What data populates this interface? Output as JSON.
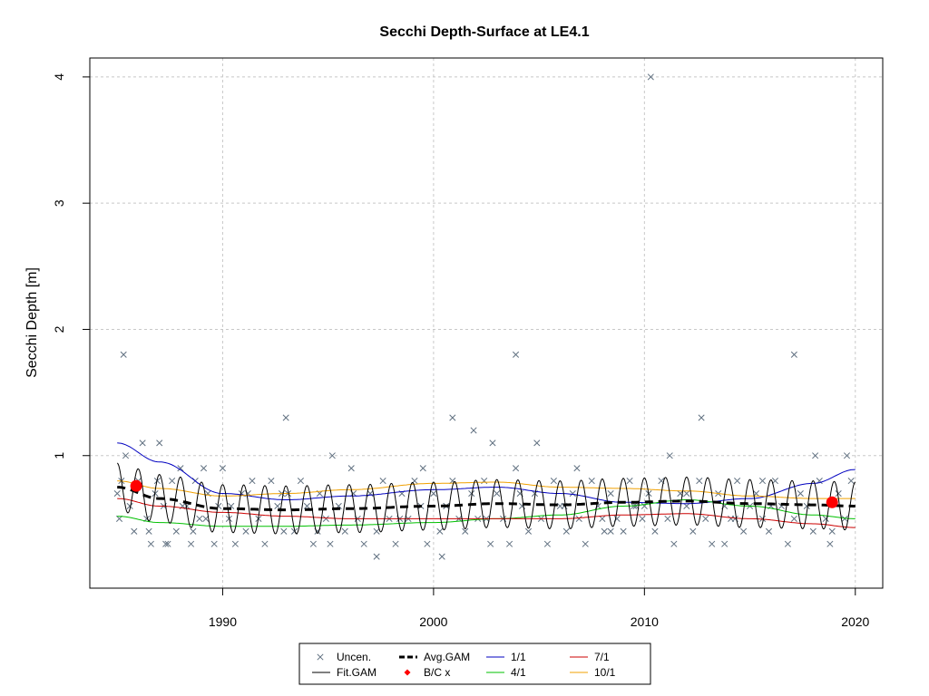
{
  "chart_data": {
    "type": "scatter",
    "title": "Secchi Depth-Surface at LE4.1",
    "xlabel": "",
    "ylabel": "Secchi Depth [m]",
    "xlim": [
      1983.7,
      2021.3
    ],
    "ylim": [
      -0.05,
      4.15
    ],
    "x_ticks": [
      1990,
      2000,
      2010,
      2020
    ],
    "y_ticks": [
      1,
      2,
      3,
      4
    ],
    "grid": true,
    "legend_position": "bottom-center",
    "legend": {
      "entries": [
        {
          "label": "Uncen.",
          "key": "uncen",
          "color": "#607080",
          "kind": "x"
        },
        {
          "label": "Fit.GAM",
          "key": "fit",
          "color": "#000000",
          "kind": "line"
        },
        {
          "label": "Avg.GAM",
          "key": "avg",
          "color": "#000000",
          "kind": "dash"
        },
        {
          "label": "B/C x",
          "key": "bc",
          "color": "#ff0000",
          "kind": "dot"
        },
        {
          "label": "1/1",
          "key": "d1",
          "color": "#0000c0",
          "kind": "line"
        },
        {
          "label": "4/1",
          "key": "d4",
          "color": "#00c000",
          "kind": "line"
        },
        {
          "label": "7/1",
          "key": "d7",
          "color": "#cc0000",
          "kind": "line"
        },
        {
          "label": "10/1",
          "key": "d10",
          "color": "#f0a000",
          "kind": "line"
        }
      ]
    },
    "observations": {
      "x": [
        1985.0,
        1985.2,
        1985.4,
        1985.6,
        1985.8,
        1986.0,
        1986.2,
        1986.4,
        1986.6,
        1986.8,
        1987.0,
        1987.2,
        1987.4,
        1987.6,
        1987.8,
        1988.0,
        1988.3,
        1988.5,
        1988.7,
        1988.9,
        1989.1,
        1989.3,
        1989.6,
        1989.8,
        1990.0,
        1990.3,
        1990.6,
        1990.9,
        1991.1,
        1991.4,
        1991.7,
        1992.0,
        1992.3,
        1992.6,
        1992.9,
        1993.1,
        1993.4,
        1993.7,
        1994.0,
        1994.3,
        1994.6,
        1994.9,
        1995.2,
        1995.5,
        1995.8,
        1996.1,
        1996.4,
        1996.7,
        1997.0,
        1997.3,
        1997.6,
        1997.9,
        1998.2,
        1998.5,
        1998.8,
        1999.1,
        1999.4,
        1999.7,
        2000.0,
        2000.3,
        2000.6,
        2000.9,
        2001.2,
        2001.5,
        2001.8,
        2002.1,
        2002.4,
        2002.7,
        2003.0,
        2003.3,
        2003.6,
        2003.9,
        2004.2,
        2004.5,
        2004.8,
        2005.1,
        2005.4,
        2005.7,
        2006.0,
        2006.3,
        2006.6,
        2006.9,
        2007.2,
        2007.5,
        2007.8,
        2008.1,
        2008.4,
        2008.7,
        2009.0,
        2009.3,
        2009.6,
        2009.9,
        2010.2,
        2010.5,
        2010.8,
        2011.1,
        2011.4,
        2011.7,
        2012.0,
        2012.3,
        2012.6,
        2012.9,
        2013.2,
        2013.5,
        2013.8,
        2014.1,
        2014.4,
        2014.7,
        2015.0,
        2015.3,
        2015.6,
        2015.9,
        2016.2,
        2016.5,
        2016.8,
        2017.1,
        2017.4,
        2017.7,
        2018.0,
        2018.3,
        2018.6,
        2018.9,
        2019.2,
        2019.5,
        2019.8,
        1985.3,
        1986.5,
        1987.3,
        1988.1,
        1989.2,
        1991.2,
        1993.0,
        1995.1,
        1997.3,
        1999.5,
        2000.4,
        2000.9,
        2001.9,
        2002.8,
        2003.9,
        2004.9,
        2006.8,
        2008.4,
        2009.5,
        2010.3,
        2011.2,
        2012.7,
        2013.8,
        2015.6,
        2017.1,
        2018.8,
        1985.1,
        1986.9,
        1988.6,
        1990.4,
        1992.8,
        1994.5,
        1996.2,
        1998.4,
        2000.6,
        2002.5,
        2004.1,
        2006.2,
        2008.0,
        2010.0,
        2012.0,
        2014.3,
        2016.0,
        2018.1,
        2019.6
      ],
      "y": [
        0.7,
        0.8,
        1.0,
        0.6,
        0.4,
        0.8,
        1.1,
        0.5,
        0.3,
        0.7,
        1.1,
        0.6,
        0.3,
        0.8,
        0.4,
        0.9,
        0.6,
        0.3,
        0.8,
        0.5,
        0.9,
        0.7,
        0.3,
        0.6,
        0.9,
        0.5,
        0.3,
        0.7,
        0.4,
        0.8,
        0.5,
        0.3,
        0.8,
        0.6,
        0.4,
        0.7,
        0.4,
        0.8,
        0.6,
        0.3,
        0.7,
        0.5,
        1.0,
        0.6,
        0.4,
        0.9,
        0.5,
        0.3,
        0.7,
        0.4,
        0.8,
        0.5,
        0.3,
        0.7,
        0.5,
        0.8,
        0.6,
        0.3,
        0.7,
        0.4,
        0.6,
        0.8,
        0.5,
        0.4,
        0.7,
        0.5,
        0.8,
        0.3,
        0.7,
        0.5,
        0.3,
        0.9,
        0.6,
        0.4,
        0.7,
        0.5,
        0.3,
        0.8,
        0.6,
        0.4,
        0.7,
        0.5,
        0.3,
        0.8,
        0.6,
        0.4,
        0.7,
        0.5,
        0.4,
        0.8,
        0.6,
        0.5,
        0.7,
        0.4,
        0.8,
        0.5,
        0.3,
        0.7,
        0.6,
        0.4,
        0.8,
        0.5,
        0.3,
        0.7,
        0.6,
        0.5,
        0.8,
        0.4,
        0.6,
        0.7,
        0.5,
        0.4,
        0.8,
        0.6,
        0.3,
        0.5,
        0.7,
        0.6,
        0.4,
        0.8,
        0.5,
        0.4,
        0.7,
        0.5,
        0.8,
        1.8,
        0.4,
        0.3,
        0.6,
        0.5,
        0.7,
        1.3,
        0.3,
        0.2,
        0.9,
        0.2,
        1.3,
        1.2,
        1.1,
        1.8,
        1.1,
        0.9,
        0.4,
        0.6,
        4.0,
        1.0,
        1.3,
        0.3,
        0.8,
        1.8,
        0.3,
        0.5,
        0.8,
        0.4,
        0.6,
        0.7,
        0.4,
        0.7,
        0.5,
        0.6,
        0.5,
        0.7,
        0.6,
        0.5,
        0.6,
        0.7,
        0.5,
        0.6,
        1.0,
        1.0
      ],
      "color": "#607080"
    },
    "bc_points": {
      "x": [
        1985.9,
        2018.9
      ],
      "y": [
        0.76,
        0.63
      ],
      "color": "#ff0000"
    },
    "fit_gam": {
      "seasonal_amplitude": 0.19,
      "period_years": 1,
      "x_start": 1985.0,
      "x_end": 2020.0,
      "color": "#000000"
    },
    "avg_gam": {
      "x": [
        1985,
        1987,
        1990,
        1993,
        1996,
        2000,
        2003,
        2006,
        2009,
        2012,
        2015,
        2018,
        2020
      ],
      "y": [
        0.75,
        0.66,
        0.58,
        0.57,
        0.58,
        0.6,
        0.62,
        0.61,
        0.63,
        0.64,
        0.62,
        0.61,
        0.6
      ],
      "color": "#000000"
    },
    "series": [
      {
        "name": "1/1",
        "color": "#0000c0",
        "x": [
          1985,
          1987,
          1990,
          1993,
          1996,
          2000,
          2003,
          2006,
          2009,
          2012,
          2015,
          2018,
          2020
        ],
        "y": [
          1.1,
          0.95,
          0.7,
          0.65,
          0.68,
          0.73,
          0.75,
          0.7,
          0.63,
          0.62,
          0.66,
          0.78,
          0.89
        ]
      },
      {
        "name": "4/1",
        "color": "#00c000",
        "x": [
          1985,
          1987,
          1990,
          1993,
          1996,
          2000,
          2003,
          2006,
          2009,
          2012,
          2015,
          2018,
          2020
        ],
        "y": [
          0.52,
          0.47,
          0.44,
          0.44,
          0.45,
          0.47,
          0.5,
          0.53,
          0.6,
          0.65,
          0.6,
          0.53,
          0.5
        ]
      },
      {
        "name": "7/1",
        "color": "#cc0000",
        "x": [
          1985,
          1987,
          1990,
          1993,
          1996,
          2000,
          2003,
          2006,
          2009,
          2012,
          2015,
          2018,
          2020
        ],
        "y": [
          0.66,
          0.6,
          0.55,
          0.52,
          0.5,
          0.5,
          0.5,
          0.5,
          0.53,
          0.54,
          0.5,
          0.46,
          0.43
        ]
      },
      {
        "name": "10/1",
        "color": "#f0a000",
        "x": [
          1985,
          1987,
          1990,
          1993,
          1996,
          2000,
          2003,
          2006,
          2009,
          2012,
          2015,
          2018,
          2020
        ],
        "y": [
          0.8,
          0.74,
          0.68,
          0.7,
          0.73,
          0.78,
          0.79,
          0.75,
          0.74,
          0.72,
          0.68,
          0.66,
          0.66
        ]
      }
    ]
  }
}
